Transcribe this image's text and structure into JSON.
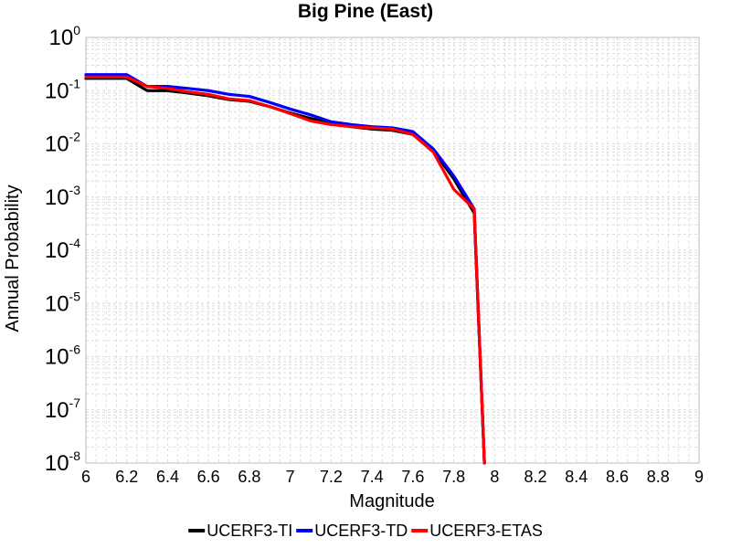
{
  "chart_data": {
    "type": "line",
    "title": "Big Pine (East)",
    "xlabel": "Magnitude",
    "ylabel": "Annual Probability",
    "xlim": [
      6,
      9
    ],
    "ylim": [
      1e-08,
      1
    ],
    "y_scale": "log",
    "grid": true,
    "legend_position": "bottom",
    "x_ticks": [
      "6",
      "6.2",
      "6.4",
      "6.6",
      "6.8",
      "7",
      "7.2",
      "7.4",
      "7.6",
      "7.8",
      "8",
      "8.2",
      "8.4",
      "8.6",
      "8.8",
      "9"
    ],
    "y_ticks": [
      {
        "base": "10",
        "exp": "0"
      },
      {
        "base": "10",
        "exp": "-1"
      },
      {
        "base": "10",
        "exp": "-2"
      },
      {
        "base": "10",
        "exp": "-3"
      },
      {
        "base": "10",
        "exp": "-4"
      },
      {
        "base": "10",
        "exp": "-5"
      },
      {
        "base": "10",
        "exp": "-6"
      },
      {
        "base": "10",
        "exp": "-7"
      },
      {
        "base": "10",
        "exp": "-8"
      }
    ],
    "series": [
      {
        "name": "UCERF3-TI",
        "color": "#000000",
        "x": [
          6.0,
          6.2,
          6.3,
          6.4,
          6.5,
          6.6,
          6.7,
          6.8,
          6.9,
          7.0,
          7.1,
          7.2,
          7.3,
          7.4,
          7.5,
          7.6,
          7.7,
          7.8,
          7.9,
          7.95
        ],
        "y": [
          0.17,
          0.17,
          0.1,
          0.1,
          0.09,
          0.08,
          0.068,
          0.063,
          0.05,
          0.038,
          0.03,
          0.024,
          0.021,
          0.019,
          0.018,
          0.015,
          0.0075,
          0.0022,
          0.0005,
          1e-08
        ]
      },
      {
        "name": "UCERF3-TD",
        "color": "#0000ff",
        "x": [
          6.0,
          6.2,
          6.3,
          6.4,
          6.5,
          6.6,
          6.7,
          6.8,
          6.9,
          7.0,
          7.1,
          7.2,
          7.3,
          7.4,
          7.5,
          7.6,
          7.7,
          7.8,
          7.9,
          7.95
        ],
        "y": [
          0.2,
          0.2,
          0.12,
          0.12,
          0.11,
          0.1,
          0.085,
          0.078,
          0.06,
          0.045,
          0.035,
          0.026,
          0.023,
          0.021,
          0.02,
          0.017,
          0.008,
          0.0025,
          0.0006,
          1e-08
        ]
      },
      {
        "name": "UCERF3-ETAS",
        "color": "#ff0000",
        "x": [
          6.0,
          6.2,
          6.3,
          6.4,
          6.5,
          6.6,
          6.7,
          6.8,
          6.9,
          7.0,
          7.1,
          7.2,
          7.3,
          7.4,
          7.5,
          7.6,
          7.7,
          7.8,
          7.9,
          7.95
        ],
        "y": [
          0.18,
          0.18,
          0.12,
          0.11,
          0.095,
          0.085,
          0.07,
          0.065,
          0.05,
          0.037,
          0.027,
          0.023,
          0.021,
          0.02,
          0.019,
          0.015,
          0.007,
          0.0014,
          0.0006,
          1e-08
        ]
      }
    ]
  }
}
